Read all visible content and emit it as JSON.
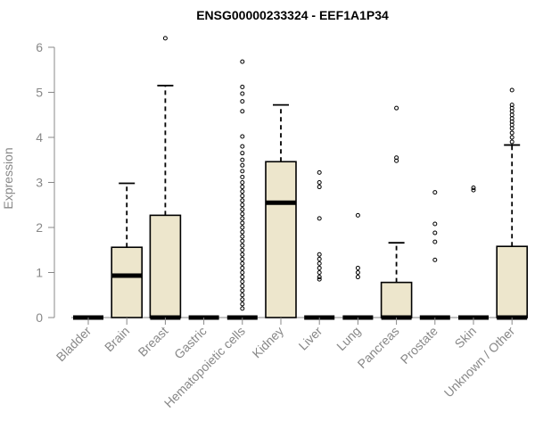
{
  "chart_data": {
    "type": "box",
    "title": "ENSG00000233324 - EEF1A1P34",
    "xlabel": "",
    "ylabel": "Expression",
    "ylim": [
      0,
      6.2
    ],
    "yticks": [
      0,
      1,
      2,
      3,
      4,
      5,
      6
    ],
    "box_fill": "#ede6cc",
    "categories": [
      "Bladder",
      "Brain",
      "Breast",
      "Gastric",
      "Hematopoietic cells",
      "Kidney",
      "Liver",
      "Lung",
      "Pancreas",
      "Prostate",
      "Skin",
      "Unknown / Other"
    ],
    "boxes": [
      {
        "q1": 0,
        "median": 0,
        "q3": 0,
        "whisker_low": 0,
        "whisker_high": 0,
        "outliers": []
      },
      {
        "q1": 0,
        "median": 0.93,
        "q3": 1.56,
        "whisker_low": 0,
        "whisker_high": 2.98,
        "outliers": []
      },
      {
        "q1": 0,
        "median": 0,
        "q3": 2.27,
        "whisker_low": 0,
        "whisker_high": 5.15,
        "outliers": [
          6.2
        ]
      },
      {
        "q1": 0,
        "median": 0,
        "q3": 0,
        "whisker_low": 0,
        "whisker_high": 0,
        "outliers": []
      },
      {
        "q1": 0,
        "median": 0,
        "q3": 0,
        "whisker_low": 0,
        "whisker_high": 0,
        "outliers": [
          5.68,
          5.12,
          4.97,
          4.8,
          4.58,
          4.02,
          3.8,
          3.65,
          3.5,
          3.38,
          3.25,
          3.12,
          3.0,
          2.9,
          2.8,
          2.7,
          2.6,
          2.5,
          2.4,
          2.3,
          2.2,
          2.1,
          2.0,
          1.9,
          1.8,
          1.7,
          1.6,
          1.5,
          1.4,
          1.3,
          1.2,
          1.1,
          1.0,
          0.9,
          0.8,
          0.7,
          0.6,
          0.5,
          0.4,
          0.3,
          0.2
        ]
      },
      {
        "q1": 0,
        "median": 2.55,
        "q3": 3.46,
        "whisker_low": 0,
        "whisker_high": 4.72,
        "outliers": []
      },
      {
        "q1": 0,
        "median": 0,
        "q3": 0,
        "whisker_low": 0,
        "whisker_high": 0,
        "outliers": [
          3.22,
          3.0,
          2.9,
          2.2,
          1.4,
          1.3,
          1.2,
          1.1,
          1.0,
          0.9,
          0.85
        ]
      },
      {
        "q1": 0,
        "median": 0,
        "q3": 0,
        "whisker_low": 0,
        "whisker_high": 0,
        "outliers": [
          2.27,
          1.1,
          1.0,
          0.9
        ]
      },
      {
        "q1": 0,
        "median": 0,
        "q3": 0.78,
        "whisker_low": 0,
        "whisker_high": 1.66,
        "outliers": [
          4.65,
          3.55,
          3.48
        ]
      },
      {
        "q1": 0,
        "median": 0,
        "q3": 0,
        "whisker_low": 0,
        "whisker_high": 0,
        "outliers": [
          2.78,
          2.08,
          1.88,
          1.68,
          1.28
        ]
      },
      {
        "q1": 0,
        "median": 0,
        "q3": 0,
        "whisker_low": 0,
        "whisker_high": 0,
        "outliers": [
          2.88,
          2.83
        ]
      },
      {
        "q1": 0,
        "median": 0,
        "q3": 1.58,
        "whisker_low": 0,
        "whisker_high": 3.83,
        "outliers": [
          5.05,
          4.72,
          4.65,
          4.58,
          4.5,
          4.42,
          4.35,
          4.28,
          4.2,
          4.1,
          4.0,
          3.9
        ]
      }
    ]
  }
}
